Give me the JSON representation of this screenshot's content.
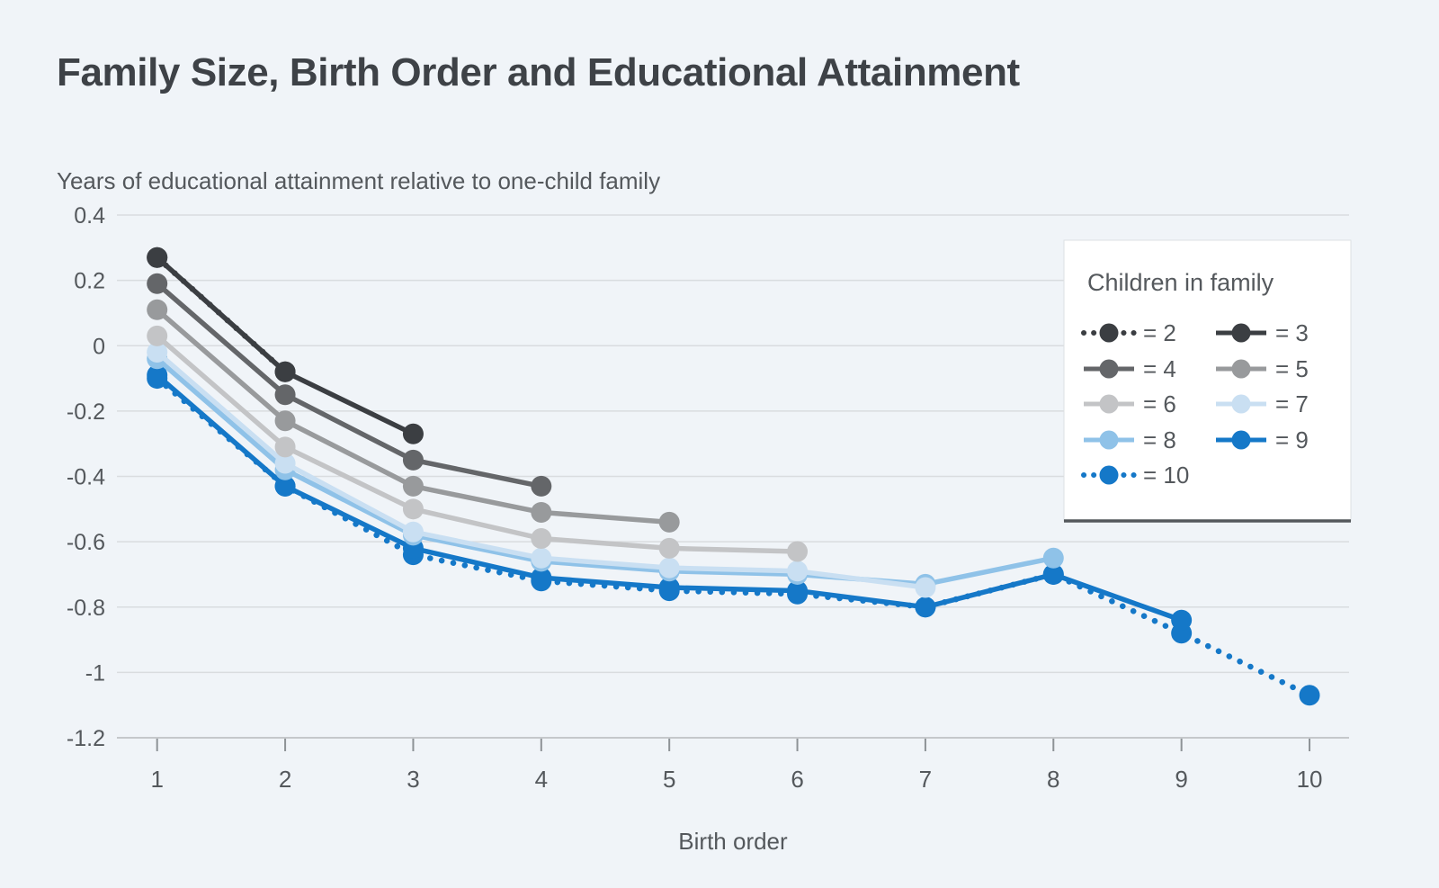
{
  "chart_data": {
    "type": "line",
    "title": "Family Size, Birth Order and Educational Attainment",
    "ylabel_text": "Years of educational attainment relative to one-child family",
    "xlabel": "Birth order",
    "x_ticks": [
      "1",
      "2",
      "3",
      "4",
      "5",
      "6",
      "7",
      "8",
      "9",
      "10"
    ],
    "y_ticks": [
      {
        "label": "0.4",
        "value": 0.4
      },
      {
        "label": "0.2",
        "value": 0.2
      },
      {
        "label": "0",
        "value": 0
      },
      {
        "label": "-0.2",
        "value": -0.2
      },
      {
        "label": "-0.4",
        "value": -0.4
      },
      {
        "label": "-0.6",
        "value": -0.6
      },
      {
        "label": "-0.8",
        "value": -0.8
      },
      {
        "label": "-1",
        "value": -1
      },
      {
        "label": "-1.2",
        "value": -1.2
      }
    ],
    "ylim": [
      -1.2,
      0.4
    ],
    "grid": true,
    "legend_title": "Children in family",
    "legend_position": "top-right",
    "series": [
      {
        "label": "= 2",
        "children_in_family": 2,
        "line_style": "dotted",
        "color": "#3b3e42",
        "x": [
          1,
          2
        ],
        "y": [
          0.27,
          -0.08
        ]
      },
      {
        "label": "= 3",
        "children_in_family": 3,
        "line_style": "solid",
        "color": "#3b3e42",
        "x": [
          1,
          2,
          3
        ],
        "y": [
          0.27,
          -0.08,
          -0.27
        ]
      },
      {
        "label": "= 4",
        "children_in_family": 4,
        "line_style": "solid",
        "color": "#646669",
        "x": [
          1,
          2,
          3,
          4
        ],
        "y": [
          0.19,
          -0.15,
          -0.35,
          -0.43
        ]
      },
      {
        "label": "= 5",
        "children_in_family": 5,
        "line_style": "solid",
        "color": "#989a9c",
        "x": [
          1,
          2,
          3,
          4,
          5
        ],
        "y": [
          0.11,
          -0.23,
          -0.43,
          -0.51,
          -0.54
        ]
      },
      {
        "label": "= 6",
        "children_in_family": 6,
        "line_style": "solid",
        "color": "#c3c4c6",
        "x": [
          1,
          2,
          3,
          4,
          5,
          6
        ],
        "y": [
          0.03,
          -0.31,
          -0.5,
          -0.59,
          -0.62,
          -0.63
        ]
      },
      {
        "label": "= 7",
        "children_in_family": 7,
        "line_style": "solid",
        "color": "#c9dff2",
        "x": [
          1,
          2,
          3,
          4,
          5,
          6,
          7
        ],
        "y": [
          -0.02,
          -0.36,
          -0.57,
          -0.65,
          -0.68,
          -0.69,
          -0.74
        ]
      },
      {
        "label": "= 8",
        "children_in_family": 8,
        "line_style": "solid",
        "color": "#8fc2e8",
        "x": [
          1,
          2,
          3,
          4,
          5,
          6,
          7,
          8
        ],
        "y": [
          -0.04,
          -0.38,
          -0.58,
          -0.66,
          -0.69,
          -0.7,
          -0.73,
          -0.65
        ]
      },
      {
        "label": "= 9",
        "children_in_family": 9,
        "line_style": "solid",
        "color": "#1578c8",
        "x": [
          1,
          2,
          3,
          4,
          5,
          6,
          7,
          8,
          9
        ],
        "y": [
          -0.09,
          -0.43,
          -0.62,
          -0.71,
          -0.74,
          -0.75,
          -0.8,
          -0.7,
          -0.84
        ]
      },
      {
        "label": "= 10",
        "children_in_family": 10,
        "line_style": "dotted",
        "color": "#1578c8",
        "x": [
          1,
          2,
          3,
          4,
          5,
          6,
          7,
          8,
          9,
          10
        ],
        "y": [
          -0.1,
          -0.43,
          -0.64,
          -0.72,
          -0.75,
          -0.76,
          -0.8,
          -0.7,
          -0.88,
          -1.07
        ]
      }
    ],
    "colors": {
      "background": "#f0f4f8",
      "gridline": "#d9dcdf",
      "axis_line": "#c5c8cb",
      "tick": "#8d9296",
      "text": "#54585c",
      "title_text": "#3e4247",
      "legend_background": "#ffffff",
      "legend_bottom_rule": "#54585c"
    }
  }
}
